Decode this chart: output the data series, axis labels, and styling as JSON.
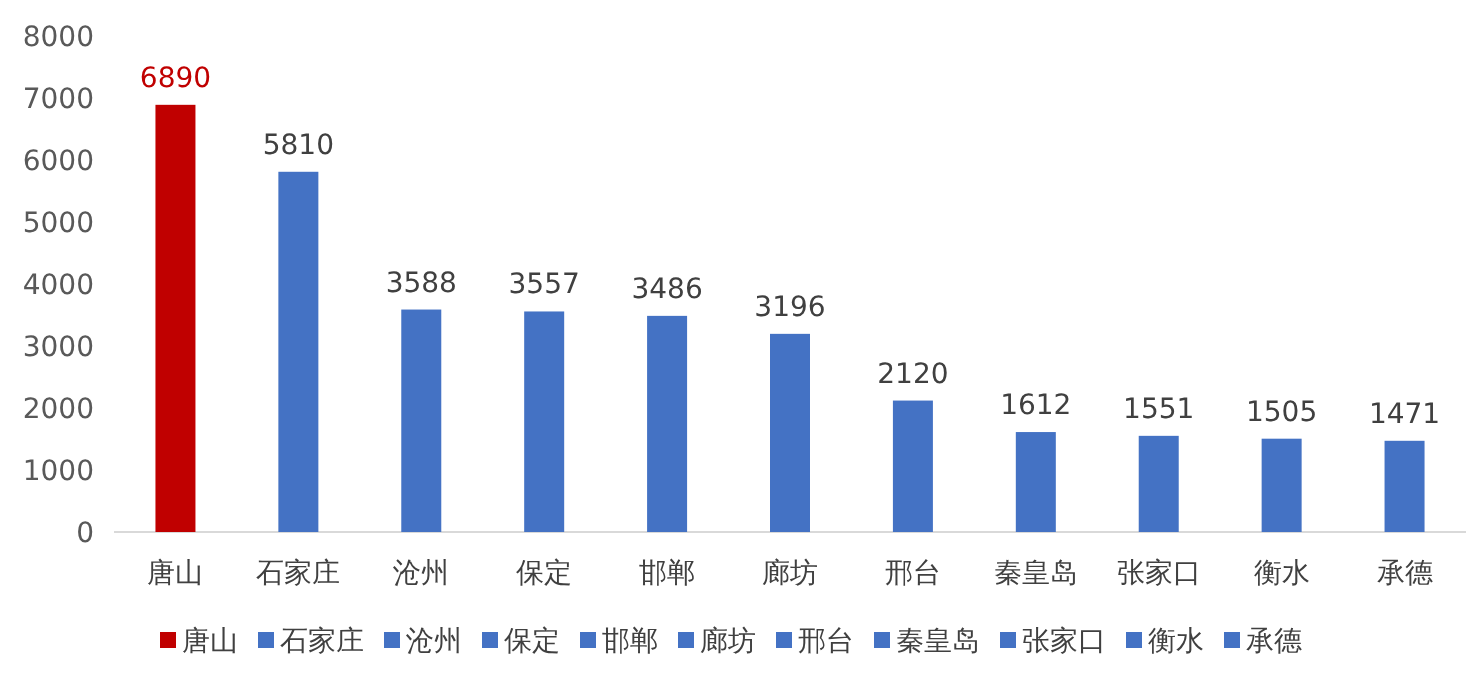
{
  "chart_data": {
    "type": "bar",
    "stacked": true,
    "categories": [
      "唐山",
      "石家庄",
      "沧州",
      "保定",
      "邯郸",
      "廊坊",
      "邢台",
      "秦皇岛",
      "张家口",
      "衡水",
      "承德"
    ],
    "series": [
      {
        "name": "唐山",
        "color": "#c00000",
        "values": [
          6890,
          null,
          null,
          null,
          null,
          null,
          null,
          null,
          null,
          null,
          null
        ]
      },
      {
        "name": "石家庄",
        "color": "#4472c4",
        "values": [
          null,
          5810,
          null,
          null,
          null,
          null,
          null,
          null,
          null,
          null,
          null
        ]
      },
      {
        "name": "沧州",
        "color": "#4472c4",
        "values": [
          null,
          null,
          3588,
          null,
          null,
          null,
          null,
          null,
          null,
          null,
          null
        ]
      },
      {
        "name": "保定",
        "color": "#4472c4",
        "values": [
          null,
          null,
          null,
          3557,
          null,
          null,
          null,
          null,
          null,
          null,
          null
        ]
      },
      {
        "name": "邯郸",
        "color": "#4472c4",
        "values": [
          null,
          null,
          null,
          null,
          3486,
          null,
          null,
          null,
          null,
          null,
          null
        ]
      },
      {
        "name": "廊坊",
        "color": "#4472c4",
        "values": [
          null,
          null,
          null,
          null,
          null,
          3196,
          null,
          null,
          null,
          null,
          null
        ]
      },
      {
        "name": "邢台",
        "color": "#4472c4",
        "values": [
          null,
          null,
          null,
          null,
          null,
          null,
          2120,
          null,
          null,
          null,
          null
        ]
      },
      {
        "name": "秦皇岛",
        "color": "#4472c4",
        "values": [
          null,
          null,
          null,
          null,
          null,
          null,
          null,
          1612,
          null,
          null,
          null
        ]
      },
      {
        "name": "张家口",
        "color": "#4472c4",
        "values": [
          null,
          null,
          null,
          null,
          null,
          null,
          null,
          null,
          1551,
          null,
          null
        ]
      },
      {
        "name": "衡水",
        "color": "#4472c4",
        "values": [
          null,
          null,
          null,
          null,
          null,
          null,
          null,
          null,
          null,
          1505,
          null
        ]
      },
      {
        "name": "承德",
        "color": "#4472c4",
        "values": [
          null,
          null,
          null,
          null,
          null,
          null,
          null,
          null,
          null,
          null,
          1471
        ]
      }
    ],
    "ylim": [
      0,
      8000
    ],
    "yticks": [
      0,
      1000,
      2000,
      3000,
      4000,
      5000,
      6000,
      7000,
      8000
    ],
    "data_labels": true,
    "legend": "bottom"
  }
}
